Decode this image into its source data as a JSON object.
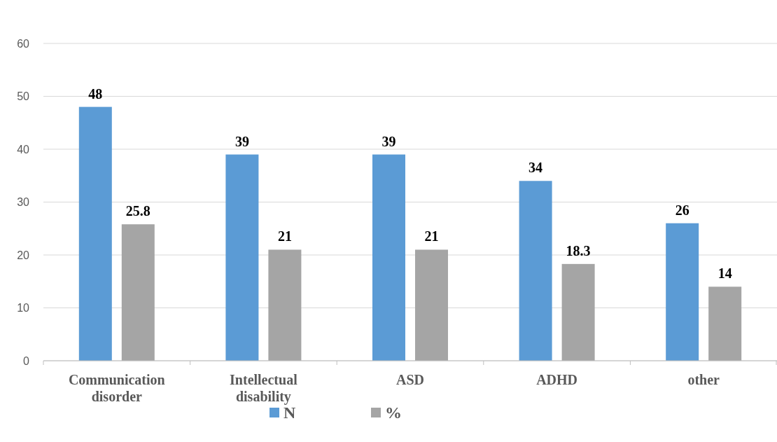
{
  "chart_data": {
    "type": "bar",
    "categories": [
      "Communication disorder",
      "Intellectual disability",
      "ASD",
      "ADHD",
      "other"
    ],
    "series": [
      {
        "name": "N",
        "color": "#5b9bd5",
        "values": [
          48,
          39,
          39,
          34,
          26
        ]
      },
      {
        "name": "%",
        "color": "#a5a5a5",
        "values": [
          25.8,
          21,
          21,
          18.3,
          14
        ]
      }
    ],
    "ylim": [
      0,
      60
    ],
    "yticks": [
      0,
      10,
      20,
      30,
      40,
      50,
      60
    ],
    "grid": "y",
    "legend": "bottom",
    "data_labels": true
  }
}
